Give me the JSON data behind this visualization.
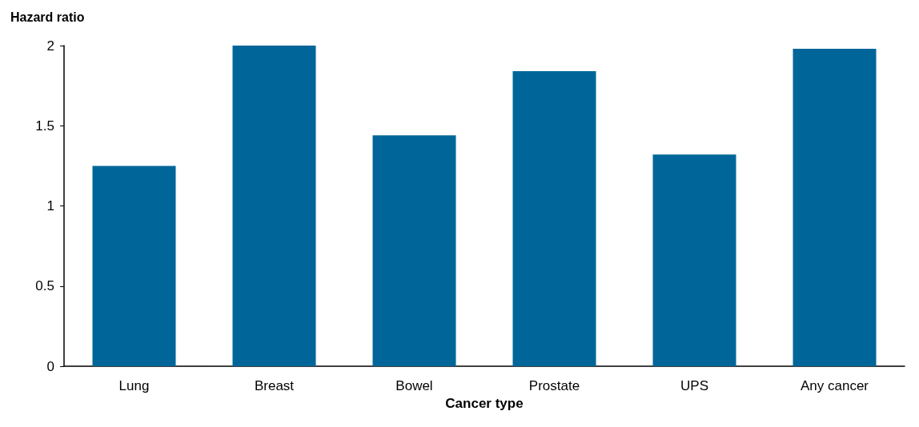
{
  "chart_data": {
    "type": "bar",
    "ylabel": "Hazard ratio",
    "xlabel": "Cancer type",
    "categories": [
      "Lung",
      "Breast",
      "Bowel",
      "Prostate",
      "UPS",
      "Any cancer"
    ],
    "values": [
      1.25,
      2,
      1.44,
      1.84,
      1.32,
      1.98
    ],
    "color": "#006699",
    "ylim": [
      0,
      2
    ],
    "yticks": [
      0,
      0.5,
      1,
      1.5,
      2
    ],
    "grid": false
  }
}
